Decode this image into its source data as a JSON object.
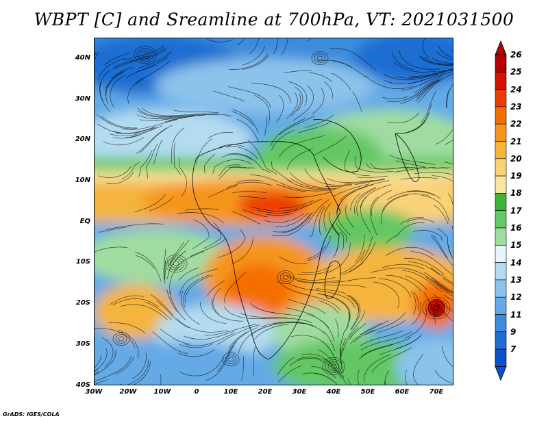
{
  "title": "WBPT [C] and Sreamline at 700hPa, VT: 2021031500",
  "footer": "GrADS: IGES/COLA",
  "map": {
    "variable": "WBPT",
    "units": "C",
    "level": "700hPa",
    "valid_time": "2021031500",
    "lon_range": [
      -30,
      75
    ],
    "lat_range": [
      -40,
      45
    ],
    "lat_ticks": [
      "40N",
      "30N",
      "20N",
      "10N",
      "EQ",
      "10S",
      "20S",
      "30S",
      "40S"
    ],
    "lon_ticks": [
      "30W",
      "20W",
      "10W",
      "0",
      "10E",
      "20E",
      "30E",
      "40E",
      "50E",
      "60E",
      "70E"
    ]
  },
  "colorbar": {
    "labels": [
      "26",
      "25",
      "24",
      "23",
      "22",
      "21",
      "20",
      "19",
      "18",
      "17",
      "16",
      "15",
      "14",
      "13",
      "12",
      "11",
      "9",
      "7"
    ],
    "colors": [
      "#b40000",
      "#d21400",
      "#eb3c00",
      "#f56e00",
      "#f5961e",
      "#f5b43c",
      "#fad278",
      "#fae6a0",
      "#3cb43c",
      "#64c864",
      "#a0dca0",
      "#e6f5fa",
      "#b4dcf0",
      "#8cc3eb",
      "#64aae6",
      "#3c8cdc",
      "#1e6ed2",
      "#0a50c8"
    ]
  }
}
